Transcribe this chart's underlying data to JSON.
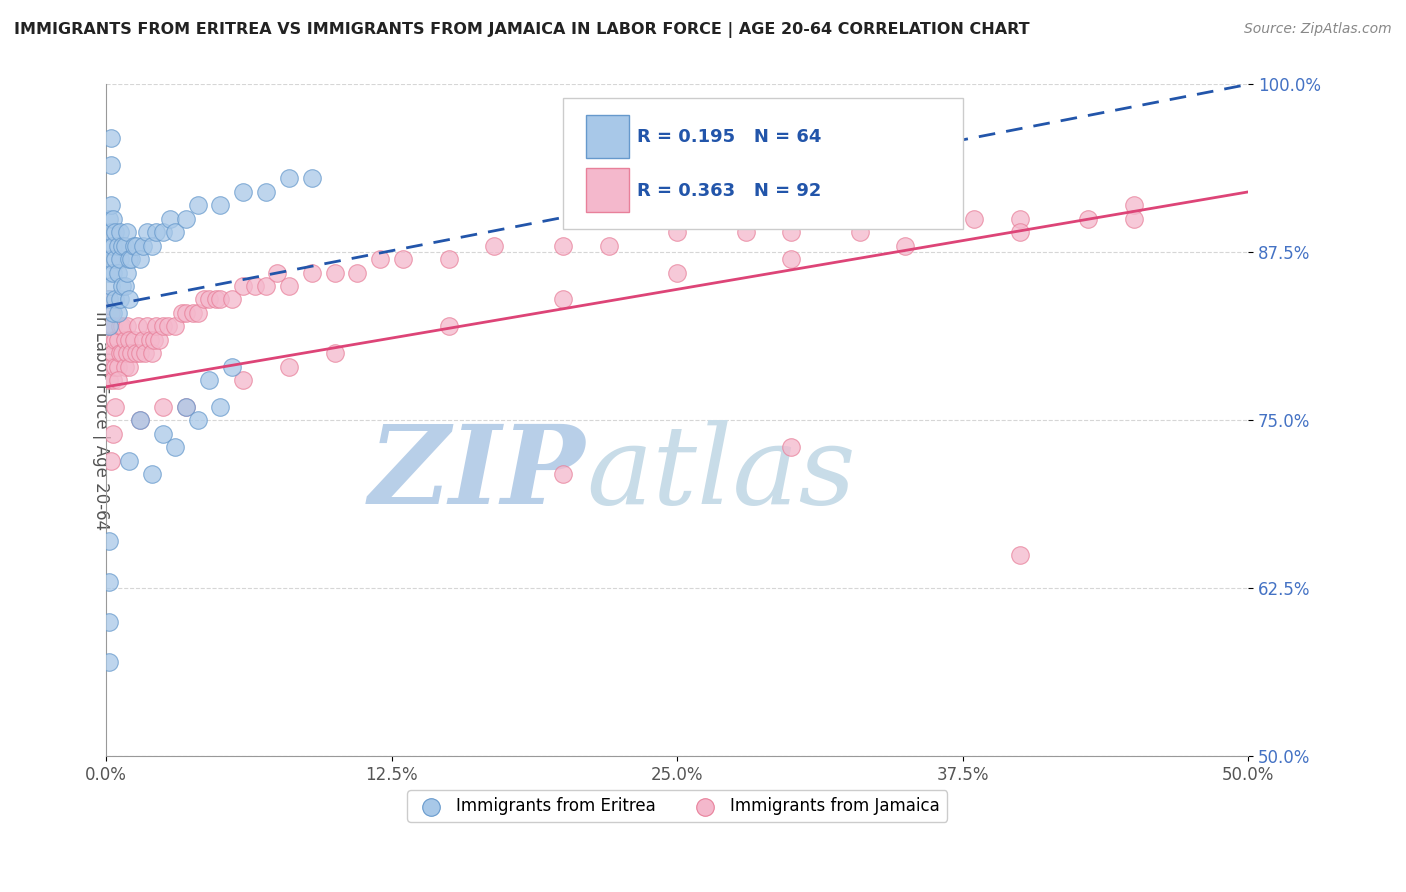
{
  "title": "IMMIGRANTS FROM ERITREA VS IMMIGRANTS FROM JAMAICA IN LABOR FORCE | AGE 20-64 CORRELATION CHART",
  "source": "Source: ZipAtlas.com",
  "ylabel": "In Labor Force | Age 20-64",
  "xlim": [
    0.0,
    0.5
  ],
  "ylim": [
    0.5,
    1.0
  ],
  "xtick_labels": [
    "0.0%",
    "12.5%",
    "25.0%",
    "37.5%",
    "50.0%"
  ],
  "xtick_vals": [
    0.0,
    0.125,
    0.25,
    0.375,
    0.5
  ],
  "ytick_labels": [
    "50.0%",
    "62.5%",
    "75.0%",
    "87.5%",
    "100.0%"
  ],
  "ytick_vals": [
    0.5,
    0.625,
    0.75,
    0.875,
    1.0
  ],
  "eritrea_color": "#a8c8e8",
  "eritrea_edge": "#6699cc",
  "jamaica_color": "#f4b8cc",
  "jamaica_edge": "#e8809a",
  "eritrea_R": 0.195,
  "eritrea_N": 64,
  "jamaica_R": 0.363,
  "jamaica_N": 92,
  "regression_blue_color": "#2255aa",
  "regression_pink_color": "#dd4477",
  "watermark_zip": "ZIP",
  "watermark_atlas": "atlas",
  "watermark_color": "#dde8f4",
  "legend_eritrea_color": "#a8c8e8",
  "legend_eritrea_edge": "#6699cc",
  "legend_jamaica_color": "#f4b8cc",
  "legend_jamaica_edge": "#e8809a",
  "eritrea_x": [
    0.001,
    0.001,
    0.001,
    0.001,
    0.001,
    0.002,
    0.002,
    0.002,
    0.002,
    0.003,
    0.003,
    0.003,
    0.003,
    0.004,
    0.004,
    0.004,
    0.005,
    0.005,
    0.005,
    0.006,
    0.006,
    0.006,
    0.007,
    0.007,
    0.008,
    0.008,
    0.009,
    0.009,
    0.01,
    0.01,
    0.011,
    0.012,
    0.013,
    0.015,
    0.016,
    0.018,
    0.02,
    0.022,
    0.025,
    0.028,
    0.03,
    0.035,
    0.04,
    0.05,
    0.06,
    0.07,
    0.08,
    0.09,
    0.01,
    0.015,
    0.02,
    0.025,
    0.03,
    0.035,
    0.04,
    0.045,
    0.05,
    0.055,
    0.001,
    0.001,
    0.001,
    0.001,
    0.002,
    0.002
  ],
  "eritrea_y": [
    0.84,
    0.86,
    0.88,
    0.9,
    0.82,
    0.85,
    0.87,
    0.89,
    0.91,
    0.83,
    0.86,
    0.88,
    0.9,
    0.84,
    0.87,
    0.89,
    0.83,
    0.86,
    0.88,
    0.84,
    0.87,
    0.89,
    0.85,
    0.88,
    0.85,
    0.88,
    0.86,
    0.89,
    0.84,
    0.87,
    0.87,
    0.88,
    0.88,
    0.87,
    0.88,
    0.89,
    0.88,
    0.89,
    0.89,
    0.9,
    0.89,
    0.9,
    0.91,
    0.91,
    0.92,
    0.92,
    0.93,
    0.93,
    0.72,
    0.75,
    0.71,
    0.74,
    0.73,
    0.76,
    0.75,
    0.78,
    0.76,
    0.79,
    0.57,
    0.6,
    0.63,
    0.66,
    0.94,
    0.96
  ],
  "jamaica_x": [
    0.001,
    0.001,
    0.001,
    0.001,
    0.002,
    0.002,
    0.002,
    0.003,
    0.003,
    0.003,
    0.004,
    0.004,
    0.005,
    0.005,
    0.006,
    0.006,
    0.007,
    0.007,
    0.008,
    0.008,
    0.009,
    0.009,
    0.01,
    0.01,
    0.011,
    0.012,
    0.013,
    0.014,
    0.015,
    0.016,
    0.017,
    0.018,
    0.019,
    0.02,
    0.021,
    0.022,
    0.023,
    0.025,
    0.027,
    0.03,
    0.033,
    0.035,
    0.038,
    0.04,
    0.043,
    0.045,
    0.048,
    0.05,
    0.055,
    0.06,
    0.065,
    0.07,
    0.075,
    0.08,
    0.09,
    0.1,
    0.11,
    0.12,
    0.13,
    0.15,
    0.17,
    0.2,
    0.22,
    0.25,
    0.28,
    0.3,
    0.33,
    0.35,
    0.38,
    0.4,
    0.43,
    0.45,
    0.002,
    0.003,
    0.004,
    0.005,
    0.015,
    0.025,
    0.035,
    0.06,
    0.08,
    0.1,
    0.15,
    0.2,
    0.25,
    0.3,
    0.35,
    0.4,
    0.45,
    0.2,
    0.3,
    0.4
  ],
  "jamaica_y": [
    0.8,
    0.82,
    0.84,
    0.78,
    0.81,
    0.83,
    0.79,
    0.8,
    0.82,
    0.78,
    0.79,
    0.81,
    0.79,
    0.81,
    0.8,
    0.82,
    0.8,
    0.82,
    0.79,
    0.81,
    0.8,
    0.82,
    0.79,
    0.81,
    0.8,
    0.81,
    0.8,
    0.82,
    0.8,
    0.81,
    0.8,
    0.82,
    0.81,
    0.8,
    0.81,
    0.82,
    0.81,
    0.82,
    0.82,
    0.82,
    0.83,
    0.83,
    0.83,
    0.83,
    0.84,
    0.84,
    0.84,
    0.84,
    0.84,
    0.85,
    0.85,
    0.85,
    0.86,
    0.85,
    0.86,
    0.86,
    0.86,
    0.87,
    0.87,
    0.87,
    0.88,
    0.88,
    0.88,
    0.89,
    0.89,
    0.89,
    0.89,
    0.9,
    0.9,
    0.9,
    0.9,
    0.91,
    0.72,
    0.74,
    0.76,
    0.78,
    0.75,
    0.76,
    0.76,
    0.78,
    0.79,
    0.8,
    0.82,
    0.84,
    0.86,
    0.87,
    0.88,
    0.89,
    0.9,
    0.71,
    0.73,
    0.65
  ]
}
